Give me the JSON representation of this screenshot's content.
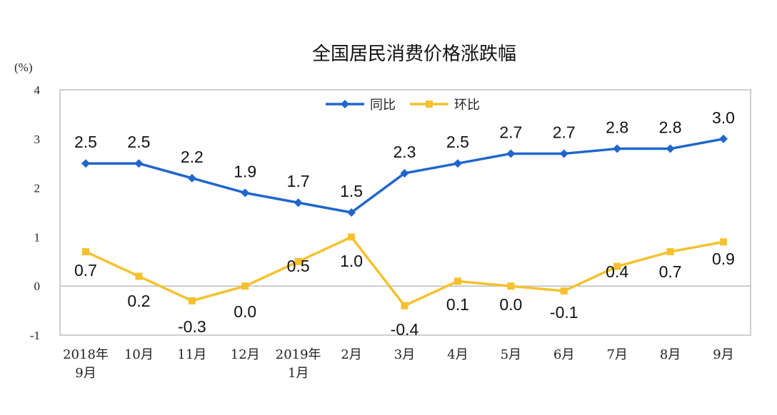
{
  "chart_data": {
    "type": "line",
    "title": "全国居民消费价格涨跌幅",
    "ylabel": "(%)",
    "xlabel": "",
    "ylim": [
      -1,
      4
    ],
    "yticks": [
      4,
      3,
      2,
      1,
      0,
      -1
    ],
    "categories": [
      [
        "2018年",
        "9月"
      ],
      [
        "10月"
      ],
      [
        "11月"
      ],
      [
        "12月"
      ],
      [
        "2019年",
        "1月"
      ],
      [
        "2月"
      ],
      [
        "3月"
      ],
      [
        "4月"
      ],
      [
        "5月"
      ],
      [
        "6月"
      ],
      [
        "7月"
      ],
      [
        "8月"
      ],
      [
        "9月"
      ]
    ],
    "series": [
      {
        "name": "同比",
        "color": "#1f66cc",
        "marker": "diamond",
        "values": [
          2.5,
          2.5,
          2.2,
          1.9,
          1.7,
          1.5,
          2.3,
          2.5,
          2.7,
          2.7,
          2.8,
          2.8,
          3.0
        ],
        "labels": [
          "2.5",
          "2.5",
          "2.2",
          "1.9",
          "1.7",
          "1.5",
          "2.3",
          "2.5",
          "2.7",
          "2.7",
          "2.8",
          "2.8",
          "3.0"
        ]
      },
      {
        "name": "环比",
        "color": "#f5c12e",
        "marker": "square",
        "values": [
          0.7,
          0.2,
          -0.3,
          0.0,
          0.5,
          1.0,
          -0.4,
          0.1,
          0.0,
          -0.1,
          0.4,
          0.7,
          0.9
        ],
        "labels": [
          "0.7",
          "0.2",
          "-0.3",
          "0.0",
          "0.5",
          "1.0",
          "-0.4",
          "0.1",
          "0.0",
          "-0.1",
          "0.4",
          "0.7",
          "0.9"
        ]
      }
    ],
    "legend_position": "top-center",
    "grid": false
  }
}
